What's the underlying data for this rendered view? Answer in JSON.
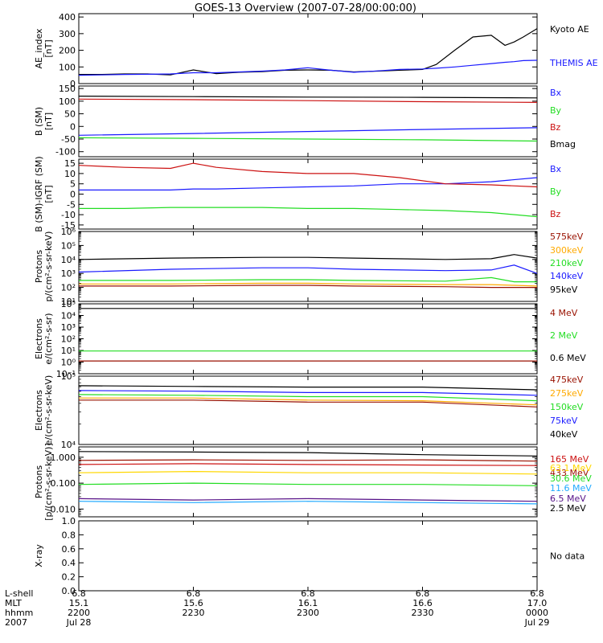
{
  "title": "GOES-13 Overview (2007-07-28/00:00:00)",
  "colors": {
    "black": "#000000",
    "blue": "#1a1aff",
    "red": "#cc1111",
    "green": "#22dd22",
    "orange": "#ffaa00",
    "darkred": "#991100",
    "yellow": "#ffd700",
    "cyan": "#22aaff",
    "purple": "#551188",
    "teal": "#00a0c0"
  },
  "time_axis": {
    "row_labels": [
      "L-shell",
      "MLT",
      "hhmm",
      "2007"
    ],
    "ticks": [
      {
        "lshell": "6.8",
        "mlt": "15.1",
        "hhmm": "2200",
        "date": "Jul 28"
      },
      {
        "lshell": "6.8",
        "mlt": "15.6",
        "hhmm": "2230",
        "date": ""
      },
      {
        "lshell": "6.8",
        "mlt": "16.1",
        "hhmm": "2300",
        "date": ""
      },
      {
        "lshell": "6.8",
        "mlt": "16.6",
        "hhmm": "2330",
        "date": ""
      },
      {
        "lshell": "6.8",
        "mlt": "17.0",
        "hhmm": "0000",
        "date": "Jul 29"
      }
    ]
  },
  "chart_data": [
    {
      "id": "ae",
      "type": "line",
      "scale": "linear",
      "ylim": [
        0,
        420
      ],
      "ylabel": [
        "AE_index",
        "[nT]"
      ],
      "ticks": [
        {
          "v": 0,
          "label": "0"
        },
        {
          "v": 100,
          "label": "100"
        },
        {
          "v": 200,
          "label": "200"
        },
        {
          "v": 300,
          "label": "300"
        },
        {
          "v": 400,
          "label": "400"
        }
      ],
      "x": [
        0,
        0.05,
        0.1,
        0.15,
        0.2,
        0.25,
        0.3,
        0.35,
        0.4,
        0.45,
        0.5,
        0.55,
        0.6,
        0.65,
        0.7,
        0.75,
        0.78,
        0.82,
        0.86,
        0.9,
        0.93,
        0.95,
        0.97,
        1.0
      ],
      "series": [
        {
          "name": "Kyoto AE",
          "color": "black",
          "values": [
            55,
            55,
            58,
            58,
            52,
            82,
            60,
            68,
            72,
            80,
            82,
            80,
            70,
            75,
            80,
            85,
            115,
            200,
            280,
            290,
            230,
            250,
            280,
            330
          ]
        },
        {
          "name": "THEMIS AE",
          "color": "blue",
          "values": [
            50,
            52,
            55,
            56,
            58,
            65,
            65,
            70,
            75,
            82,
            95,
            80,
            68,
            76,
            85,
            88,
            92,
            100,
            110,
            120,
            128,
            132,
            138,
            140
          ]
        }
      ]
    },
    {
      "id": "bsm",
      "type": "line",
      "scale": "linear",
      "ylim": [
        -120,
        160
      ],
      "ylabel": [
        "B (SM)",
        "[nT]"
      ],
      "ticks": [
        {
          "v": -100,
          "label": "-100"
        },
        {
          "v": -50,
          "label": "-50"
        },
        {
          "v": 0,
          "label": "0"
        },
        {
          "v": 50,
          "label": "50"
        },
        {
          "v": 100,
          "label": "100"
        },
        {
          "v": 150,
          "label": "150"
        }
      ],
      "x": [
        0,
        0.25,
        0.5,
        0.75,
        1.0
      ],
      "series": [
        {
          "name": "Bx",
          "color": "blue",
          "values": [
            -35,
            -28,
            -20,
            -12,
            -5
          ]
        },
        {
          "name": "By",
          "color": "green",
          "values": [
            -45,
            -47,
            -50,
            -53,
            -58
          ]
        },
        {
          "name": "Bz",
          "color": "red",
          "values": [
            108,
            106,
            102,
            98,
            95
          ]
        },
        {
          "name": "Bmag",
          "color": "black",
          "values": [
            120,
            118,
            116,
            115,
            113
          ]
        }
      ]
    },
    {
      "id": "bigrf",
      "type": "line",
      "scale": "linear",
      "ylim": [
        -17,
        17
      ],
      "ylabel": [
        "B (SM)-IGRF (SM)",
        "[nT]"
      ],
      "ticks": [
        {
          "v": -15,
          "label": "-15"
        },
        {
          "v": -10,
          "label": "-10"
        },
        {
          "v": -5,
          "label": "-5"
        },
        {
          "v": 0,
          "label": "0"
        },
        {
          "v": 5,
          "label": "5"
        },
        {
          "v": 10,
          "label": "10"
        },
        {
          "v": 15,
          "label": "15"
        }
      ],
      "x": [
        0,
        0.1,
        0.2,
        0.25,
        0.3,
        0.4,
        0.5,
        0.6,
        0.7,
        0.8,
        0.9,
        1.0
      ],
      "series": [
        {
          "name": "Bx",
          "color": "blue",
          "values": [
            2,
            2,
            2,
            2.5,
            2.5,
            3,
            3.5,
            4,
            5,
            5,
            6,
            8
          ]
        },
        {
          "name": "By",
          "color": "green",
          "values": [
            -7,
            -7,
            -6.5,
            -6.5,
            -6.5,
            -6.5,
            -7,
            -7,
            -7.5,
            -8,
            -9,
            -11
          ]
        },
        {
          "name": "Bz",
          "color": "red",
          "values": [
            14,
            13,
            12.5,
            15,
            13,
            11,
            10,
            10,
            8,
            5,
            4.5,
            3.5
          ]
        }
      ]
    },
    {
      "id": "protons1",
      "type": "line",
      "scale": "log",
      "ylim": [
        1,
        6
      ],
      "ylabel": [
        "Protons",
        "p/(cm²-s-sr-keV)"
      ],
      "ticks": [
        {
          "v": 1,
          "label": "10¹"
        },
        {
          "v": 2,
          "label": "10²"
        },
        {
          "v": 3,
          "label": "10³"
        },
        {
          "v": 4,
          "label": "10⁴"
        },
        {
          "v": 5,
          "label": "10⁵"
        },
        {
          "v": 6,
          "label": "10⁶"
        }
      ],
      "x": [
        0,
        0.2,
        0.4,
        0.5,
        0.6,
        0.8,
        0.9,
        0.95,
        1.0
      ],
      "series": [
        {
          "name": "575keV",
          "color": "darkred",
          "values": [
            2.1,
            2.1,
            2.15,
            2.15,
            2.1,
            2.05,
            2.0,
            2.0,
            2.0
          ]
        },
        {
          "name": "300keV",
          "color": "orange",
          "values": [
            2.25,
            2.25,
            2.3,
            2.3,
            2.25,
            2.2,
            2.2,
            2.15,
            2.1
          ]
        },
        {
          "name": "210keV",
          "color": "green",
          "values": [
            2.5,
            2.5,
            2.55,
            2.55,
            2.5,
            2.45,
            2.7,
            2.4,
            2.4
          ]
        },
        {
          "name": "140keV",
          "color": "blue",
          "values": [
            3.1,
            3.3,
            3.4,
            3.4,
            3.3,
            3.2,
            3.25,
            3.6,
            3.0
          ]
        },
        {
          "name": "95keV",
          "color": "black",
          "values": [
            4.0,
            4.1,
            4.15,
            4.15,
            4.1,
            4.0,
            4.05,
            4.35,
            4.1
          ]
        }
      ]
    },
    {
      "id": "electrons1",
      "type": "line",
      "scale": "log",
      "ylim": [
        -1,
        5
      ],
      "ylabel": [
        "Electrons",
        "e/(cm²-s-sr)"
      ],
      "ticks": [
        {
          "v": -1,
          "label": "10⁻¹"
        },
        {
          "v": 0,
          "label": "10⁰"
        },
        {
          "v": 1,
          "label": "10¹"
        },
        {
          "v": 2,
          "label": "10²"
        },
        {
          "v": 3,
          "label": "10³"
        },
        {
          "v": 4,
          "label": "10⁴"
        },
        {
          "v": 5,
          "label": "10⁵"
        }
      ],
      "x": [
        0,
        0.25,
        0.5,
        0.75,
        1.0
      ],
      "series": [
        {
          "name": "4 MeV",
          "color": "darkred",
          "values": [
            0.1,
            0.1,
            0.1,
            0.1,
            0.1
          ]
        },
        {
          "name": "2 MeV",
          "color": "green",
          "values": [
            0.95,
            0.95,
            0.95,
            0.95,
            0.95
          ]
        },
        {
          "name": "0.6 MeV",
          "color": "black",
          "values": [
            4.6,
            4.6,
            4.6,
            4.6,
            4.6
          ]
        }
      ]
    },
    {
      "id": "electrons2",
      "type": "line",
      "scale": "log",
      "ylim": [
        4,
        5
      ],
      "ylabel": [
        "Electrons",
        "e/(cm²-s-sr-keV)"
      ],
      "ticks": [
        {
          "v": 4,
          "label": "10⁴"
        },
        {
          "v": 5,
          "label": "10⁵"
        }
      ],
      "x": [
        0,
        0.25,
        0.5,
        0.75,
        1.0
      ],
      "series": [
        {
          "name": "475keV",
          "color": "darkred",
          "values": [
            4.65,
            4.65,
            4.62,
            4.62,
            4.55
          ]
        },
        {
          "name": "275keV",
          "color": "orange",
          "values": [
            4.68,
            4.68,
            4.65,
            4.64,
            4.58
          ]
        },
        {
          "name": "150keV",
          "color": "green",
          "values": [
            4.73,
            4.72,
            4.7,
            4.7,
            4.64
          ]
        },
        {
          "name": "75keV",
          "color": "blue",
          "values": [
            4.79,
            4.78,
            4.76,
            4.76,
            4.72
          ]
        },
        {
          "name": "40keV",
          "color": "black",
          "values": [
            4.86,
            4.85,
            4.84,
            4.84,
            4.8
          ]
        }
      ]
    },
    {
      "id": "protons2",
      "type": "line",
      "scale": "log",
      "ylim": [
        -2.3,
        0.4
      ],
      "ylabel": [
        "Protons",
        "[p/(cm²-s-sr-keV)]"
      ],
      "ticks": [
        {
          "v": -2,
          "label": "0.010"
        },
        {
          "v": -1,
          "label": "0.100"
        },
        {
          "v": 0,
          "label": "1.000"
        }
      ],
      "x": [
        0,
        0.25,
        0.5,
        0.75,
        1.0
      ],
      "series": [
        {
          "name": "433 MeV",
          "color": "darkred",
          "values": [
            -0.12,
            -0.1,
            -0.12,
            -0.1,
            -0.15
          ]
        },
        {
          "name": "165 MeV",
          "color": "red",
          "values": [
            -0.28,
            -0.25,
            -0.28,
            -0.3,
            -0.32
          ]
        },
        {
          "name": "63.1 MeV",
          "color": "yellow",
          "values": [
            -0.6,
            -0.55,
            -0.6,
            -0.6,
            -0.65
          ]
        },
        {
          "name": "30.6 MeV",
          "color": "green",
          "values": [
            -1.05,
            -1.0,
            -1.05,
            -1.05,
            -1.1
          ]
        },
        {
          "name": "11.6 MeV",
          "color": "cyan",
          "values": [
            -1.7,
            -1.75,
            -1.7,
            -1.75,
            -1.8
          ]
        },
        {
          "name": "6.5 MeV",
          "color": "purple",
          "values": [
            -1.6,
            -1.65,
            -1.6,
            -1.65,
            -1.7
          ]
        },
        {
          "name": "2.5 MeV",
          "color": "black",
          "values": [
            0.22,
            0.2,
            0.18,
            0.1,
            0.05
          ]
        }
      ]
    },
    {
      "id": "xray",
      "type": "line",
      "scale": "linear",
      "ylim": [
        0,
        1
      ],
      "ylabel": [
        "X-ray"
      ],
      "ticks": [
        {
          "v": 0,
          "label": "0.0"
        },
        {
          "v": 0.2,
          "label": "0.2"
        },
        {
          "v": 0.4,
          "label": "0.4"
        },
        {
          "v": 0.6,
          "label": "0.6"
        },
        {
          "v": 0.8,
          "label": "0.8"
        },
        {
          "v": 1.0,
          "label": "1.0"
        }
      ],
      "x": [],
      "series": [],
      "no_data": "No data"
    }
  ]
}
